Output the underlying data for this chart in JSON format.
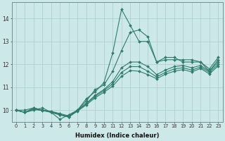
{
  "xlabel": "Humidex (Indice chaleur)",
  "ylabel": "",
  "xlim": [
    -0.5,
    23.5
  ],
  "ylim": [
    9.5,
    14.7
  ],
  "yticks": [
    10,
    11,
    12,
    13,
    14
  ],
  "xticks": [
    0,
    1,
    2,
    3,
    4,
    5,
    6,
    7,
    8,
    9,
    10,
    11,
    12,
    13,
    14,
    15,
    16,
    17,
    18,
    19,
    20,
    21,
    22,
    23
  ],
  "bg_color": "#cce8e8",
  "grid_color": "#b0d0d0",
  "line_color": "#2e7d6e",
  "lines": [
    [
      10.0,
      10.0,
      10.1,
      10.0,
      9.9,
      9.6,
      9.8,
      10.0,
      10.5,
      10.8,
      11.2,
      12.5,
      14.4,
      13.7,
      13.0,
      13.0,
      12.1,
      12.2,
      12.2,
      12.2,
      12.2,
      12.1,
      11.7,
      12.2
    ],
    [
      10.0,
      9.9,
      10.0,
      10.1,
      9.9,
      9.8,
      9.7,
      10.0,
      10.4,
      10.9,
      11.1,
      11.7,
      12.6,
      13.4,
      13.5,
      13.2,
      12.1,
      12.3,
      12.3,
      12.1,
      12.1,
      12.1,
      11.8,
      12.3
    ],
    [
      10.0,
      9.9,
      10.1,
      10.0,
      9.95,
      9.85,
      9.75,
      10.0,
      10.3,
      10.65,
      10.9,
      11.25,
      11.85,
      12.1,
      12.1,
      11.9,
      11.55,
      11.75,
      11.9,
      11.95,
      11.85,
      11.95,
      11.7,
      12.1
    ],
    [
      10.0,
      9.9,
      10.05,
      10.0,
      9.93,
      9.82,
      9.72,
      9.98,
      10.28,
      10.6,
      10.85,
      11.15,
      11.65,
      11.9,
      11.9,
      11.7,
      11.45,
      11.65,
      11.8,
      11.85,
      11.75,
      11.88,
      11.65,
      12.0
    ],
    [
      10.0,
      9.9,
      10.03,
      9.98,
      9.91,
      9.79,
      9.7,
      9.96,
      10.23,
      10.54,
      10.78,
      11.05,
      11.48,
      11.73,
      11.7,
      11.55,
      11.37,
      11.57,
      11.7,
      11.77,
      11.67,
      11.82,
      11.58,
      11.93
    ]
  ]
}
